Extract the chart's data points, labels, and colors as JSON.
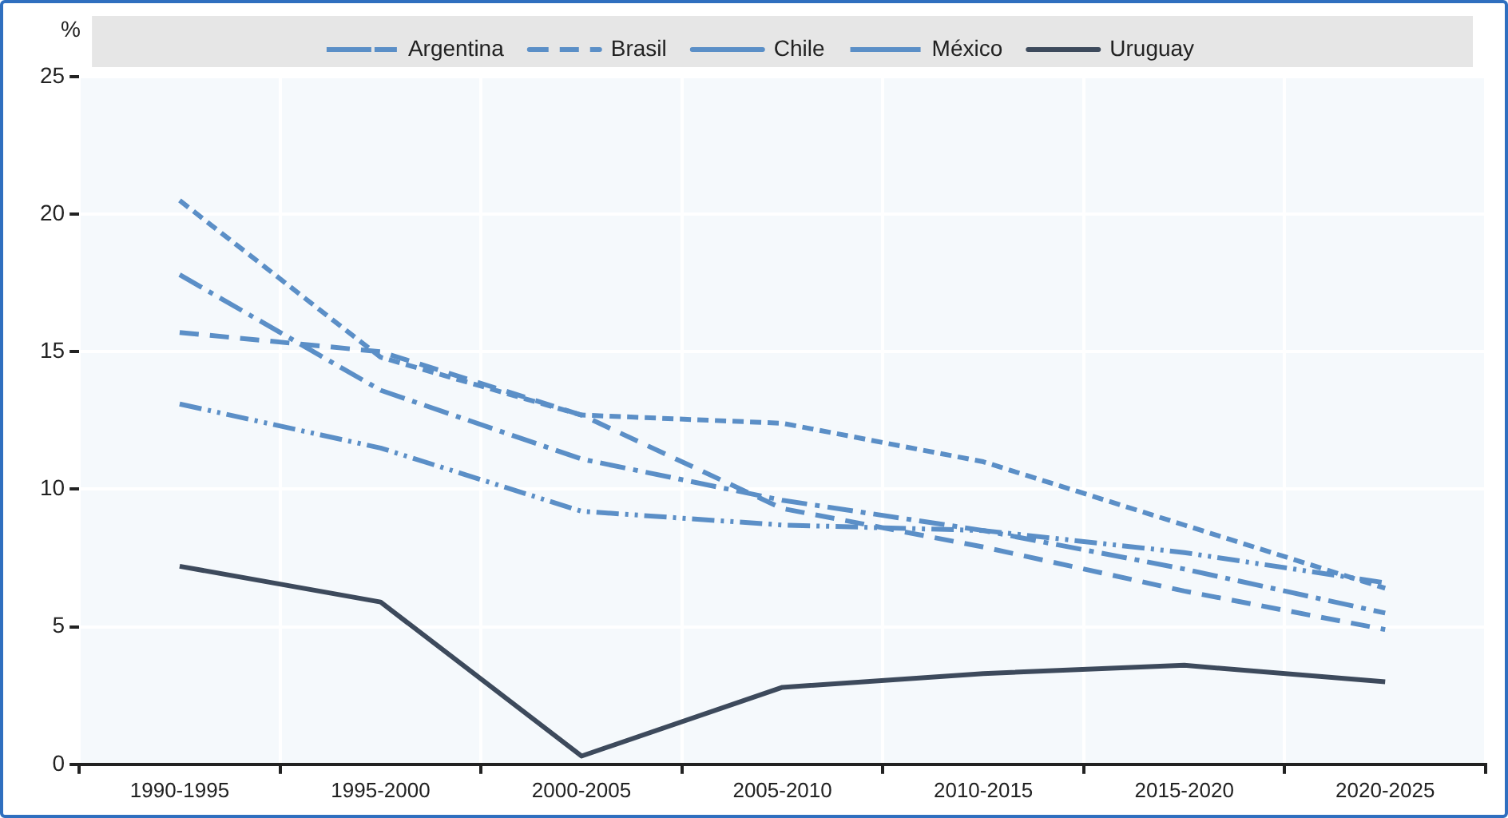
{
  "chart_data": {
    "type": "line",
    "ylabel": "%",
    "categories": [
      "1990-1995",
      "1995-2000",
      "2000-2005",
      "2005-2010",
      "2010-2015",
      "2015-2020",
      "2020-2025"
    ],
    "series": [
      {
        "name": "Argentina",
        "color": "#5b8fc7",
        "line_style": "dashed",
        "values": [
          13.1,
          11.5,
          9.2,
          8.7,
          8.5,
          7.7,
          6.6
        ]
      },
      {
        "name": "Brasil",
        "color": "#5b8fc7",
        "line_style": "dashed",
        "values": [
          15.7,
          15.0,
          12.7,
          9.3,
          7.9,
          6.3,
          4.9
        ]
      },
      {
        "name": "Chile",
        "color": "#5b8fc7",
        "line_style": "dashed",
        "values": [
          17.8,
          13.6,
          11.1,
          9.6,
          8.5,
          7.1,
          5.5
        ]
      },
      {
        "name": "México",
        "color": "#5b8fc7",
        "line_style": "dashed",
        "values": [
          20.5,
          14.8,
          12.7,
          12.4,
          11.0,
          8.7,
          6.4
        ]
      },
      {
        "name": "Uruguay",
        "color": "#3d4a5c",
        "line_style": "solid",
        "values": [
          7.2,
          5.9,
          0.3,
          2.8,
          3.3,
          3.6,
          3.0
        ]
      }
    ],
    "ylim": [
      0,
      25
    ],
    "yticks": [
      0,
      5,
      10,
      15,
      20,
      25
    ],
    "grid": true,
    "legend": "top",
    "marker": "none"
  }
}
